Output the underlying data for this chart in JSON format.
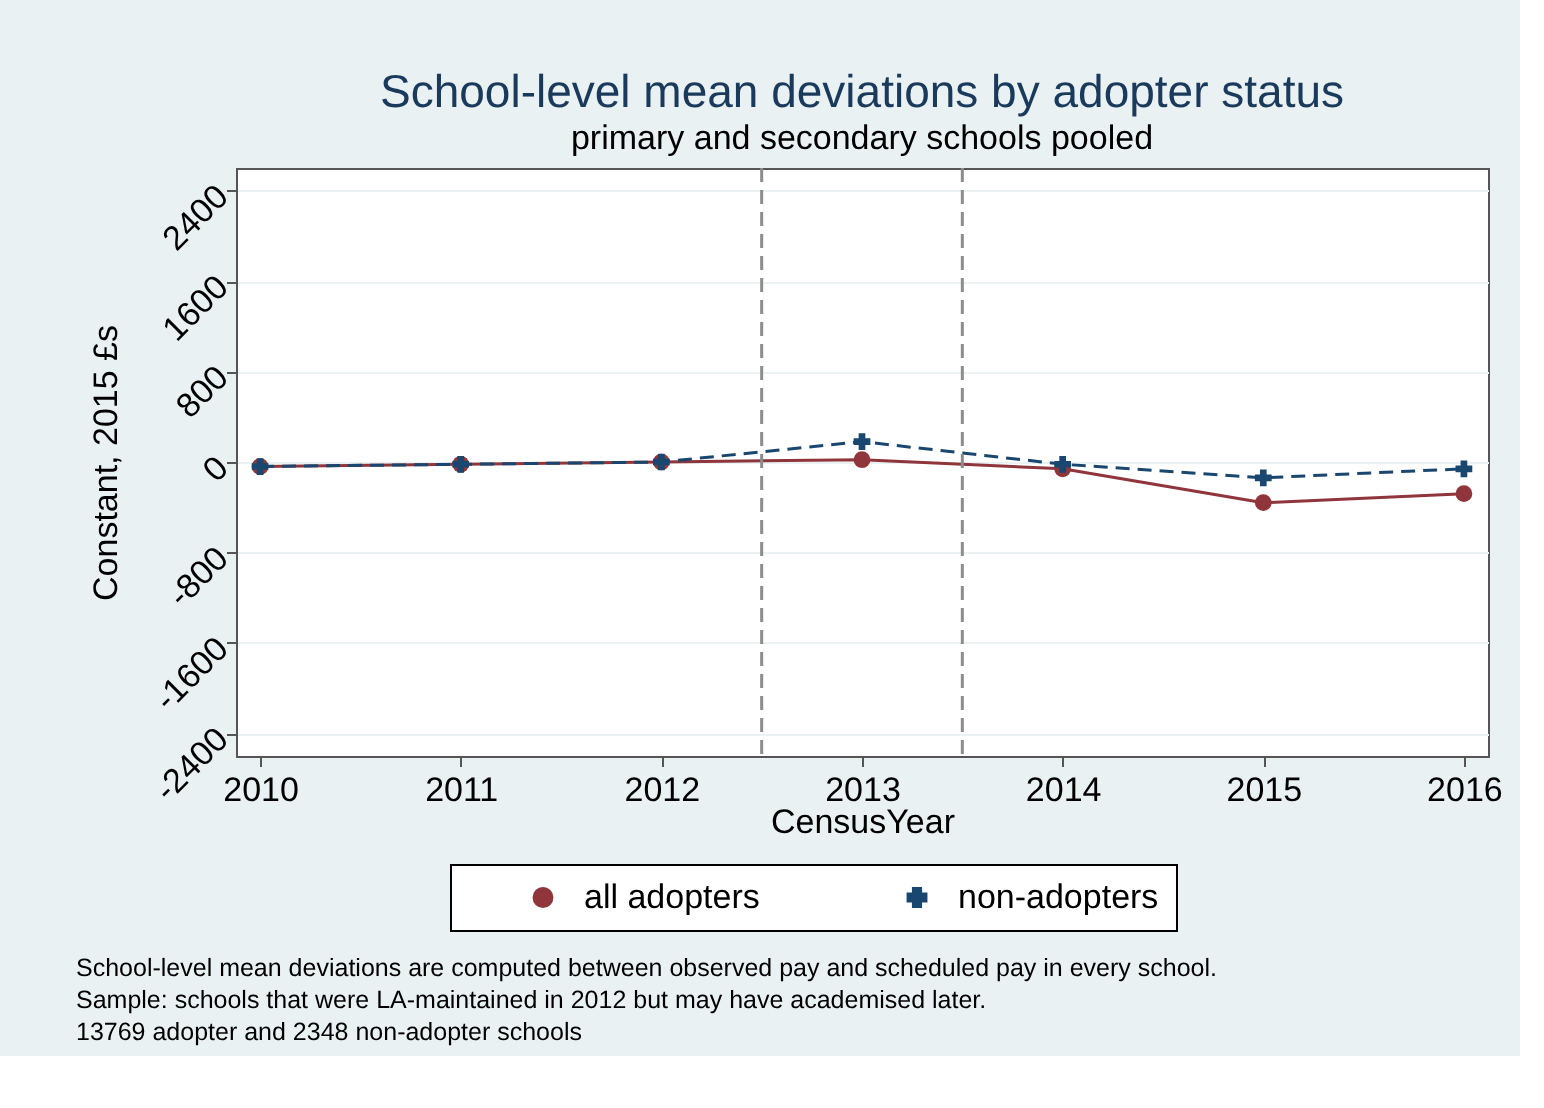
{
  "chart_data": {
    "type": "line",
    "title": "School-level mean deviations by adopter status",
    "subtitle": "primary and secondary schools pooled",
    "xlabel": "CensusYear",
    "ylabel": "Constant, 2015 £s",
    "x": [
      2010,
      2011,
      2012,
      2013,
      2014,
      2015,
      2016
    ],
    "series": [
      {
        "name": "all adopters",
        "color": "#90353b",
        "marker": "circle",
        "line_style": "solid",
        "values": [
          -40,
          -20,
          0,
          20,
          -60,
          -360,
          -280
        ]
      },
      {
        "name": "non-adopters",
        "color": "#1a476f",
        "marker": "cross",
        "line_style": "dashed",
        "values": [
          -40,
          -20,
          0,
          180,
          -20,
          -140,
          -60
        ]
      }
    ],
    "xlim": [
      2009.88,
      2016.12
    ],
    "xticks": [
      2010,
      2011,
      2012,
      2013,
      2014,
      2015,
      2016
    ],
    "ylim": [
      -2600,
      2600
    ],
    "yticks": [
      -2400,
      -1600,
      -800,
      0,
      800,
      1600,
      2400
    ],
    "ref_lines": [
      {
        "axis": "x",
        "value": 2012.5,
        "color": "#8c8c8c",
        "line_style": "dashed"
      },
      {
        "axis": "x",
        "value": 2013.5,
        "color": "#8c8c8c",
        "line_style": "dashed"
      }
    ],
    "grid": "y",
    "legend": "bottom",
    "annotations": [
      "School-level mean deviations are computed between observed pay and scheduled pay in every school.",
      "Sample: schools that were LA-maintained in 2012 but may have academised later.",
      "13769 adopter and 2348 non-adopter schools"
    ]
  }
}
